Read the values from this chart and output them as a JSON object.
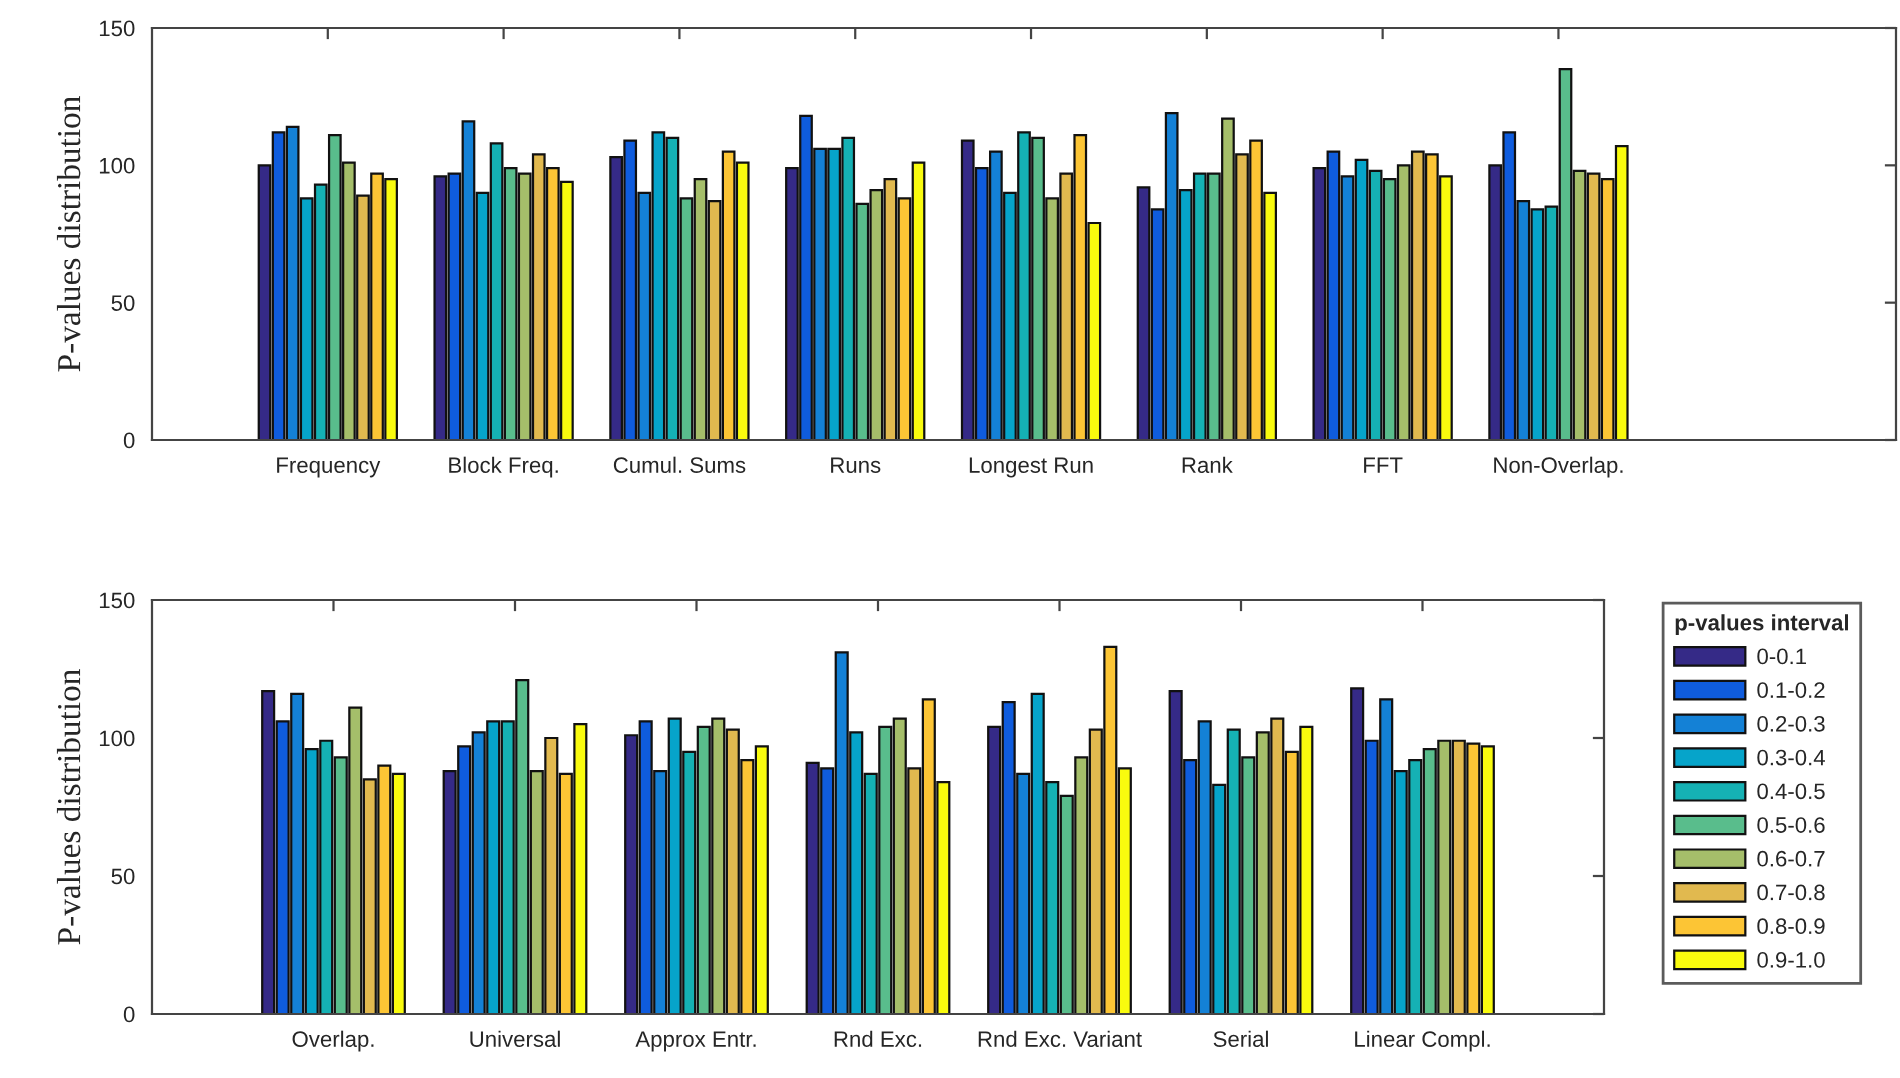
{
  "chart_data": [
    {
      "type": "bar",
      "ylabel": "P-values distribution",
      "categories": [
        "Frequency",
        "Block Freq.",
        "Cumul. Sums",
        "Runs",
        "Longest Run",
        "Rank",
        "FFT",
        "Non-Overlap."
      ],
      "ylim": [
        0,
        150
      ],
      "yticks": [
        0,
        50,
        100,
        150
      ],
      "grid": false,
      "series": [
        {
          "color": "#352a87",
          "values": [
            100,
            96,
            103,
            99,
            109,
            92,
            99,
            100
          ]
        },
        {
          "color": "#0f5cdd",
          "values": [
            112,
            97,
            109,
            118,
            99,
            84,
            105,
            112
          ]
        },
        {
          "color": "#1481d6",
          "values": [
            114,
            116,
            90,
            106,
            105,
            119,
            96,
            87
          ]
        },
        {
          "color": "#06a4ca",
          "values": [
            88,
            90,
            112,
            106,
            90,
            91,
            102,
            84
          ]
        },
        {
          "color": "#15b1b4",
          "values": [
            93,
            108,
            110,
            110,
            112,
            97,
            98,
            85
          ]
        },
        {
          "color": "#59bd8c",
          "values": [
            111,
            99,
            88,
            86,
            110,
            97,
            95,
            135
          ]
        },
        {
          "color": "#a5be6a",
          "values": [
            101,
            97,
            95,
            91,
            88,
            117,
            100,
            98
          ]
        },
        {
          "color": "#e1b94f",
          "values": [
            89,
            104,
            87,
            95,
            97,
            104,
            105,
            97
          ]
        },
        {
          "color": "#fcc535",
          "values": [
            97,
            99,
            105,
            88,
            111,
            109,
            104,
            95
          ]
        },
        {
          "color": "#f9fb0e",
          "values": [
            95,
            94,
            101,
            101,
            79,
            90,
            96,
            107
          ]
        }
      ]
    },
    {
      "type": "bar",
      "ylabel": "P-values distribution",
      "categories": [
        "Overlap.",
        "Universal",
        "Approx Entr.",
        "Rnd Exc.",
        "Rnd Exc. Variant",
        "Serial",
        "Linear Compl."
      ],
      "ylim": [
        0,
        150
      ],
      "yticks": [
        0,
        50,
        100,
        150
      ],
      "grid": false,
      "legend": "right",
      "legend_title": "p-values interval",
      "series": [
        {
          "name": "0-0.1",
          "color": "#352a87",
          "values": [
            117,
            88,
            101,
            91,
            104,
            117,
            118
          ]
        },
        {
          "name": "0.1-0.2",
          "color": "#0f5cdd",
          "values": [
            106,
            97,
            106,
            89,
            113,
            92,
            99
          ]
        },
        {
          "name": "0.2-0.3",
          "color": "#1481d6",
          "values": [
            116,
            102,
            88,
            131,
            87,
            106,
            114
          ]
        },
        {
          "name": "0.3-0.4",
          "color": "#06a4ca",
          "values": [
            96,
            106,
            107,
            102,
            116,
            83,
            88
          ]
        },
        {
          "name": "0.4-0.5",
          "color": "#15b1b4",
          "values": [
            99,
            106,
            95,
            87,
            84,
            103,
            92
          ]
        },
        {
          "name": "0.5-0.6",
          "color": "#59bd8c",
          "values": [
            93,
            121,
            104,
            104,
            79,
            93,
            96
          ]
        },
        {
          "name": "0.6-0.7",
          "color": "#a5be6a",
          "values": [
            111,
            88,
            107,
            107,
            93,
            102,
            99
          ]
        },
        {
          "name": "0.7-0.8",
          "color": "#e1b94f",
          "values": [
            85,
            100,
            103,
            89,
            103,
            107,
            99
          ]
        },
        {
          "name": "0.8-0.9",
          "color": "#fcc535",
          "values": [
            90,
            87,
            92,
            114,
            133,
            95,
            98
          ]
        },
        {
          "name": "0.9-1.0",
          "color": "#f9fb0e",
          "values": [
            87,
            105,
            97,
            84,
            89,
            104,
            97
          ]
        }
      ]
    }
  ]
}
